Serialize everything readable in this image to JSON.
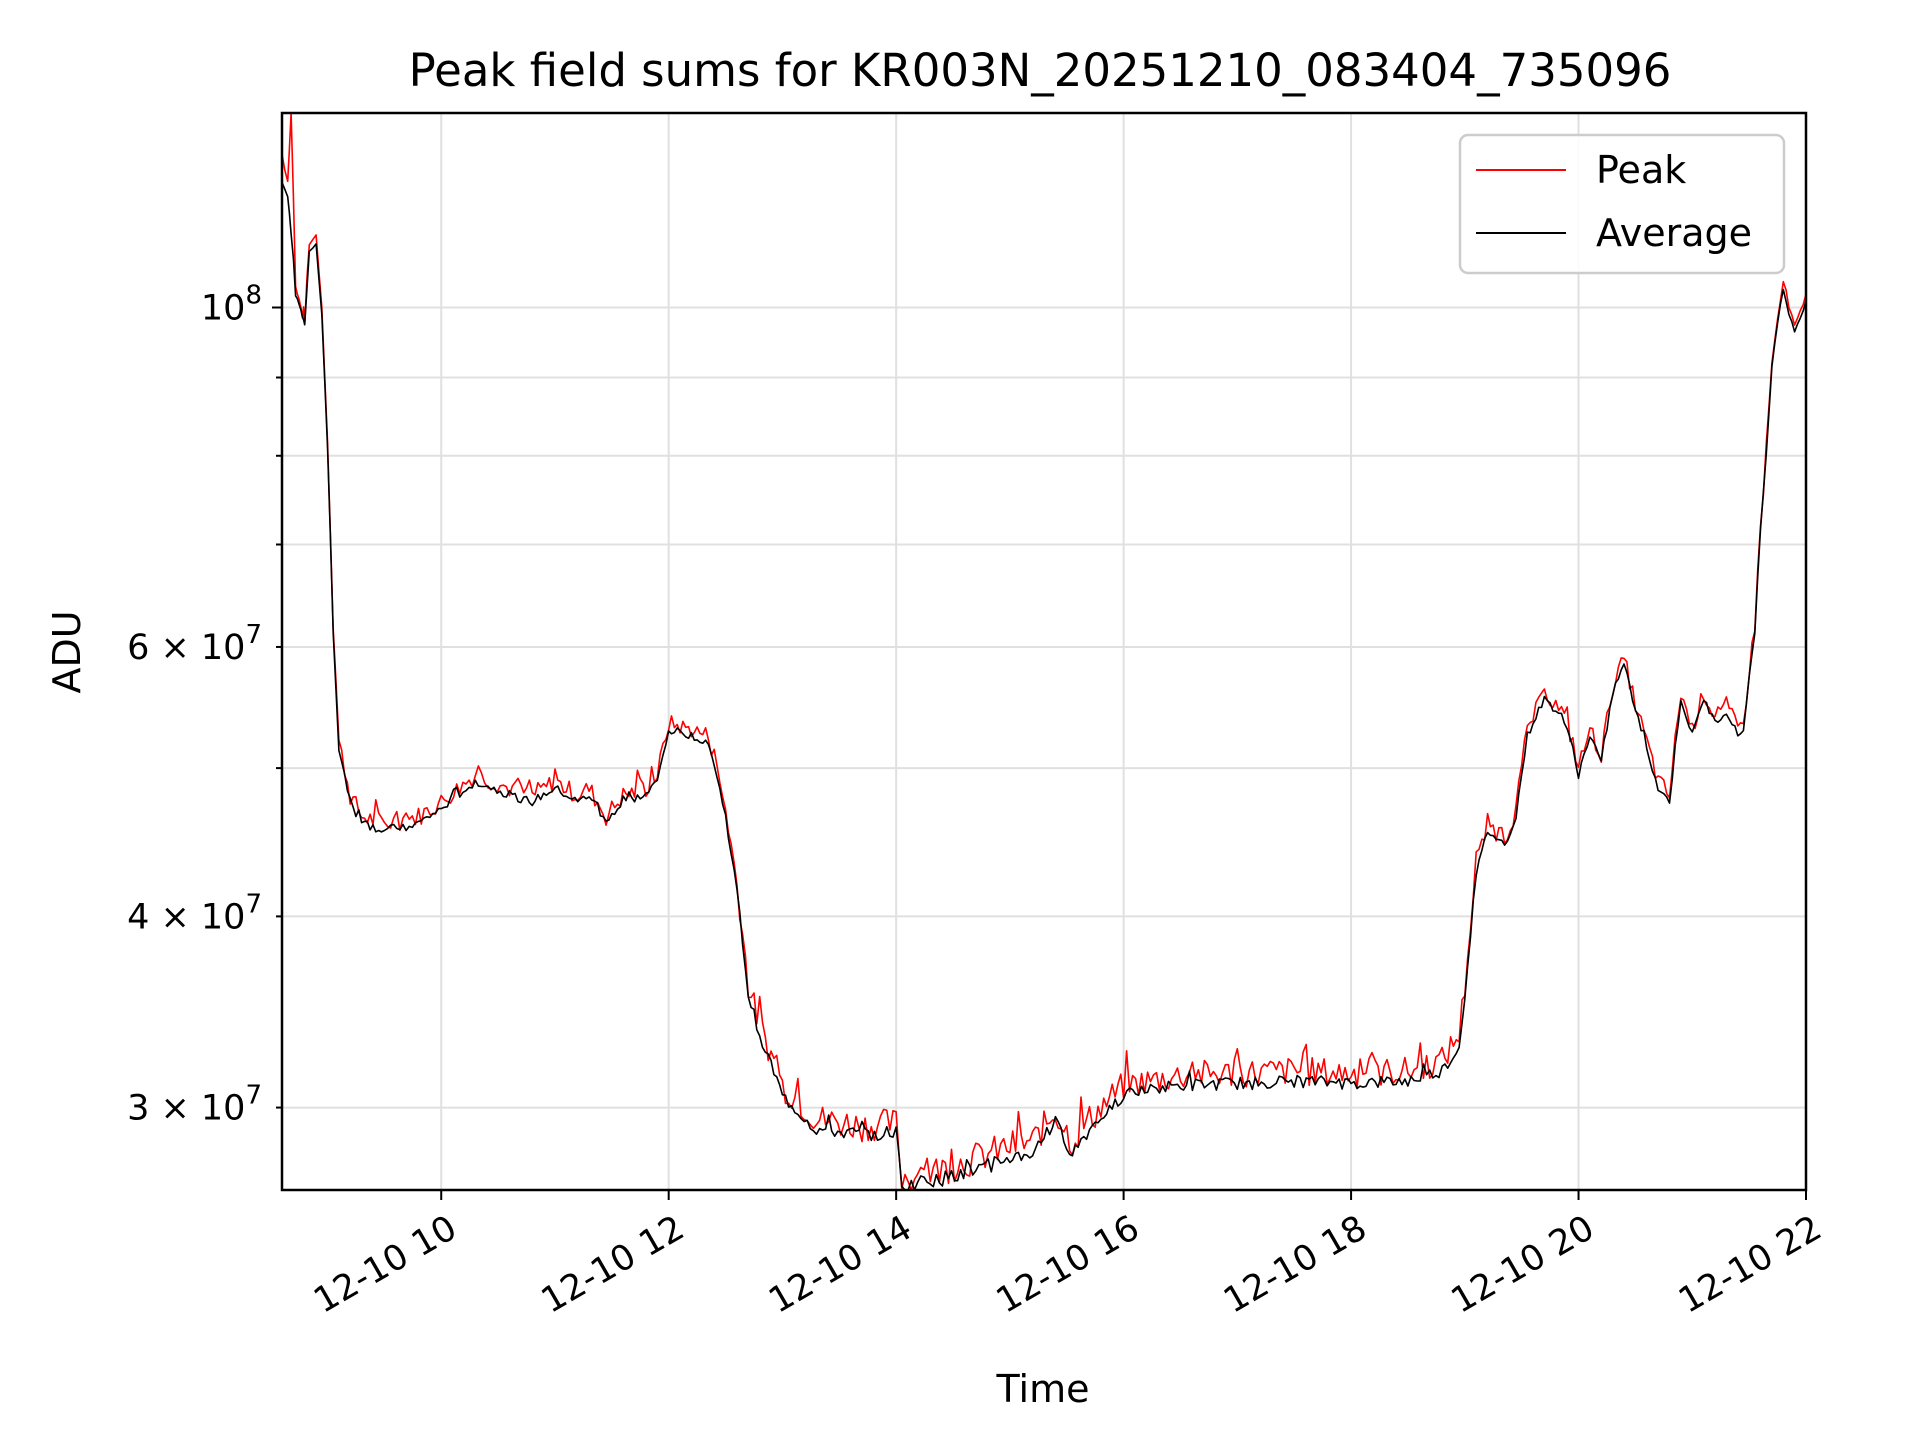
{
  "chart_data": {
    "type": "line",
    "title": "Peak field sums for KR003N_20251210_083404_735096",
    "xlabel": "Time",
    "ylabel": "ADU",
    "yscale": "log",
    "xlim": [
      8.6,
      22.0
    ],
    "ylim": [
      26500000,
      134000000
    ],
    "grid": true,
    "legend_position": "top-right",
    "x_ticks": [
      {
        "value": 10,
        "label": "12-10 10"
      },
      {
        "value": 12,
        "label": "12-10 12"
      },
      {
        "value": 14,
        "label": "12-10 14"
      },
      {
        "value": 16,
        "label": "12-10 16"
      },
      {
        "value": 18,
        "label": "12-10 18"
      },
      {
        "value": 20,
        "label": "12-10 20"
      },
      {
        "value": 22,
        "label": "12-10 22"
      }
    ],
    "y_major_ticks": [
      {
        "value": 100000000,
        "base": "10",
        "exp": "8"
      }
    ],
    "y_minor_ticks": [
      {
        "value": 30000000,
        "mant": "3",
        "base": "10",
        "exp": "7"
      },
      {
        "value": 40000000,
        "mant": "4",
        "base": "10",
        "exp": "7"
      },
      {
        "value": 60000000,
        "mant": "6",
        "base": "10",
        "exp": "7"
      }
    ],
    "y_minor_unlabeled": [
      50000000,
      70000000,
      80000000,
      90000000
    ],
    "series": [
      {
        "name": "Peak",
        "color": "#ff0000",
        "x": [
          8.6,
          8.65,
          8.68,
          8.72,
          8.75,
          8.78,
          8.8,
          8.84,
          8.9,
          8.95,
          9.0,
          9.05,
          9.1,
          9.2,
          9.3,
          9.5,
          9.8,
          10.0,
          10.3,
          10.6,
          10.8,
          11.0,
          11.2,
          11.3,
          11.45,
          11.6,
          11.8,
          11.9,
          12.0,
          12.2,
          12.35,
          12.5,
          12.6,
          12.7,
          12.8,
          13.0,
          13.3,
          13.7,
          14.0,
          14.05,
          14.3,
          14.7,
          15.0,
          15.2,
          15.4,
          15.55,
          15.65,
          15.8,
          16.0,
          16.5,
          17.0,
          17.5,
          18.0,
          18.5,
          18.8,
          18.95,
          19.0,
          19.1,
          19.2,
          19.35,
          19.45,
          19.55,
          19.7,
          19.85,
          19.95,
          20.0,
          20.1,
          20.2,
          20.3,
          20.4,
          20.5,
          20.6,
          20.7,
          20.8,
          20.9,
          21.0,
          21.1,
          21.2,
          21.3,
          21.4,
          21.45,
          21.55,
          21.6,
          21.65,
          21.7,
          21.75,
          21.8,
          21.85,
          21.9,
          21.95,
          22.0
        ],
        "y": [
          126000000,
          121000000,
          134000000,
          103000000,
          101000000,
          99000000,
          98000000,
          110000000,
          111000000,
          100000000,
          82000000,
          62000000,
          52000000,
          48000000,
          46500000,
          46000000,
          46500000,
          47500000,
          49500000,
          48500000,
          48000000,
          49000000,
          48000000,
          48500000,
          46500000,
          48000000,
          48500000,
          49500000,
          53500000,
          53000000,
          52500000,
          47000000,
          42000000,
          36000000,
          34000000,
          31000000,
          29500000,
          29200000,
          29300000,
          27000000,
          27200000,
          27800000,
          28300000,
          28500000,
          29800000,
          28500000,
          29200000,
          30000000,
          31000000,
          31500000,
          31600000,
          31700000,
          31600000,
          31700000,
          32200000,
          33500000,
          36000000,
          43000000,
          46000000,
          45000000,
          47000000,
          53000000,
          56000000,
          54500000,
          52000000,
          50000000,
          53000000,
          51000000,
          56500000,
          59000000,
          55000000,
          52000000,
          49000000,
          48000000,
          56000000,
          53000000,
          56000000,
          54000000,
          55000000,
          53000000,
          53500000,
          62000000,
          72000000,
          80000000,
          92000000,
          98000000,
          104000000,
          100000000,
          97000000,
          99000000,
          102000000
        ],
        "ripple": 700000
      },
      {
        "name": "Average",
        "color": "#000000",
        "x": [
          8.6,
          8.65,
          8.68,
          8.72,
          8.75,
          8.78,
          8.8,
          8.84,
          8.9,
          8.95,
          9.0,
          9.05,
          9.1,
          9.2,
          9.3,
          9.5,
          9.8,
          10.0,
          10.3,
          10.6,
          10.8,
          11.0,
          11.2,
          11.3,
          11.45,
          11.6,
          11.8,
          11.9,
          12.0,
          12.2,
          12.35,
          12.5,
          12.6,
          12.7,
          12.8,
          13.0,
          13.3,
          13.7,
          14.0,
          14.05,
          14.3,
          14.7,
          15.0,
          15.2,
          15.4,
          15.55,
          15.65,
          15.8,
          16.0,
          16.5,
          17.0,
          17.5,
          18.0,
          18.5,
          18.8,
          18.95,
          19.0,
          19.1,
          19.2,
          19.35,
          19.45,
          19.55,
          19.7,
          19.85,
          19.95,
          20.0,
          20.1,
          20.2,
          20.3,
          20.4,
          20.5,
          20.6,
          20.7,
          20.8,
          20.9,
          21.0,
          21.1,
          21.2,
          21.3,
          21.4,
          21.45,
          21.55,
          21.6,
          21.65,
          21.7,
          21.75,
          21.8,
          21.85,
          21.9,
          21.95,
          22.0
        ],
        "y": [
          121000000,
          118000000,
          112000000,
          102000000,
          100500000,
          98500000,
          97500000,
          109000000,
          110000000,
          99000000,
          81000000,
          61000000,
          51500000,
          47500000,
          46000000,
          45500000,
          46000000,
          47000000,
          49000000,
          48000000,
          47500000,
          48500000,
          47500000,
          48000000,
          46000000,
          47500000,
          48000000,
          49000000,
          53000000,
          52500000,
          52000000,
          46500000,
          41500000,
          35500000,
          33500000,
          30500000,
          29000000,
          28800000,
          28900000,
          26600000,
          26800000,
          27300000,
          27800000,
          28000000,
          29300000,
          28000000,
          28700000,
          29600000,
          30600000,
          31000000,
          31100000,
          31200000,
          31100000,
          31200000,
          31700000,
          32800000,
          35500000,
          42500000,
          45500000,
          44500000,
          46500000,
          52500000,
          55500000,
          54000000,
          51500000,
          49500000,
          52500000,
          50500000,
          56000000,
          58500000,
          54500000,
          51500000,
          48500000,
          47500000,
          55500000,
          52500000,
          55500000,
          53500000,
          54500000,
          52500000,
          53000000,
          61500000,
          71500000,
          79500000,
          91500000,
          97500000,
          103000000,
          99000000,
          96500000,
          98500000,
          101000000
        ],
        "ripple": 300000
      }
    ]
  }
}
